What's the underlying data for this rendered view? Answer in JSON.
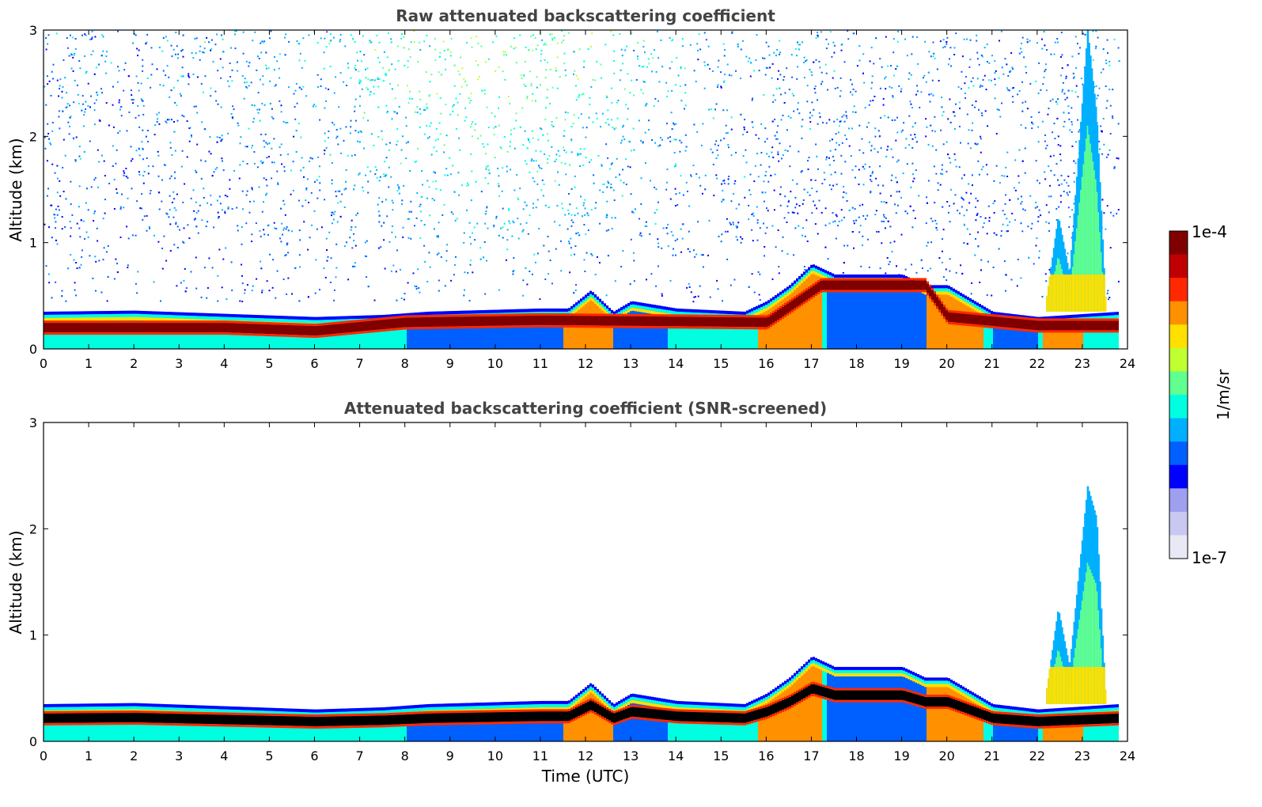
{
  "colors": {
    "colormap": [
      "#e9e9f6",
      "#c8c8f2",
      "#9f9ff0",
      "#0000ff",
      "#0060ff",
      "#00b0ff",
      "#00ffe0",
      "#60ff90",
      "#c0ff30",
      "#ffe000",
      "#ff9000",
      "#ff2800",
      "#c00000",
      "#800000"
    ],
    "screened_max": "#000000",
    "frame": "#000000",
    "title": "#444444"
  },
  "chart_data": [
    {
      "type": "heatmap",
      "title": "Raw attenuated backscattering coefficient",
      "xlabel": "",
      "ylabel": "Altitude (km)",
      "xlim": [
        0,
        24
      ],
      "ylim": [
        0,
        3
      ],
      "xticks": [
        "0",
        "1",
        "2",
        "3",
        "4",
        "5",
        "6",
        "7",
        "8",
        "9",
        "10",
        "11",
        "12",
        "13",
        "14",
        "15",
        "16",
        "17",
        "18",
        "19",
        "20",
        "21",
        "22",
        "23",
        "24"
      ],
      "yticks": [
        "0",
        "1",
        "2",
        "3"
      ],
      "aerosol_layer_top_km": {
        "time": [
          0,
          2,
          4,
          6,
          7.5,
          8.5,
          11,
          11.6,
          12.1,
          12.6,
          13,
          14,
          15.5,
          16,
          16.5,
          17,
          17.5,
          19,
          19.5,
          20,
          21,
          22,
          23.8
        ],
        "value": [
          0.35,
          0.36,
          0.33,
          0.3,
          0.32,
          0.35,
          0.38,
          0.38,
          0.55,
          0.35,
          0.45,
          0.38,
          0.35,
          0.45,
          0.6,
          0.8,
          0.7,
          0.7,
          0.6,
          0.6,
          0.35,
          0.3,
          0.35
        ]
      },
      "peak_backscatter_layer_km": {
        "time": [
          0,
          4,
          6,
          8,
          11,
          16,
          17.2,
          19.5,
          20,
          22,
          23.8
        ],
        "value": [
          0.2,
          0.2,
          0.17,
          0.25,
          0.27,
          0.25,
          0.6,
          0.6,
          0.3,
          0.22,
          0.22
        ]
      },
      "plume_top_km": {
        "time": [
          22.2,
          22.45,
          22.7,
          23.1,
          23.3,
          23.5
        ],
        "value": [
          0.5,
          1.25,
          0.7,
          3.0,
          2.2,
          0.4
        ]
      },
      "noise_region": "noisy background above ~0.4 km, strongest around 9-11 UTC"
    },
    {
      "type": "heatmap",
      "title": "Attenuated backscattering coefficient (SNR-screened)",
      "xlabel": "Time (UTC)",
      "ylabel": "Altitude (km)",
      "xlim": [
        0,
        24
      ],
      "ylim": [
        0,
        3
      ],
      "xticks": [
        "0",
        "1",
        "2",
        "3",
        "4",
        "5",
        "6",
        "7",
        "8",
        "9",
        "10",
        "11",
        "12",
        "13",
        "14",
        "15",
        "16",
        "17",
        "18",
        "19",
        "20",
        "21",
        "22",
        "23",
        "24"
      ],
      "yticks": [
        "0",
        "1",
        "2",
        "3"
      ],
      "aerosol_layer_top_km": {
        "time": [
          0,
          2,
          4,
          6,
          7.5,
          8.5,
          11,
          11.6,
          12.1,
          12.6,
          13,
          14,
          15.5,
          16,
          16.5,
          17,
          17.5,
          19,
          19.5,
          20,
          21,
          22,
          23.8
        ],
        "value": [
          0.35,
          0.36,
          0.33,
          0.3,
          0.32,
          0.35,
          0.38,
          0.38,
          0.55,
          0.35,
          0.45,
          0.38,
          0.35,
          0.45,
          0.6,
          0.8,
          0.7,
          0.7,
          0.6,
          0.6,
          0.35,
          0.3,
          0.35
        ]
      },
      "plume_top_km": {
        "time": [
          22.2,
          22.45,
          22.7,
          23.1,
          23.3,
          23.5
        ],
        "value": [
          0.5,
          1.25,
          0.7,
          2.4,
          2.1,
          0.4
        ]
      }
    }
  ],
  "colorbar": {
    "label": "1/m/sr",
    "max_label": "1e-4",
    "min_label": "1e-7"
  }
}
